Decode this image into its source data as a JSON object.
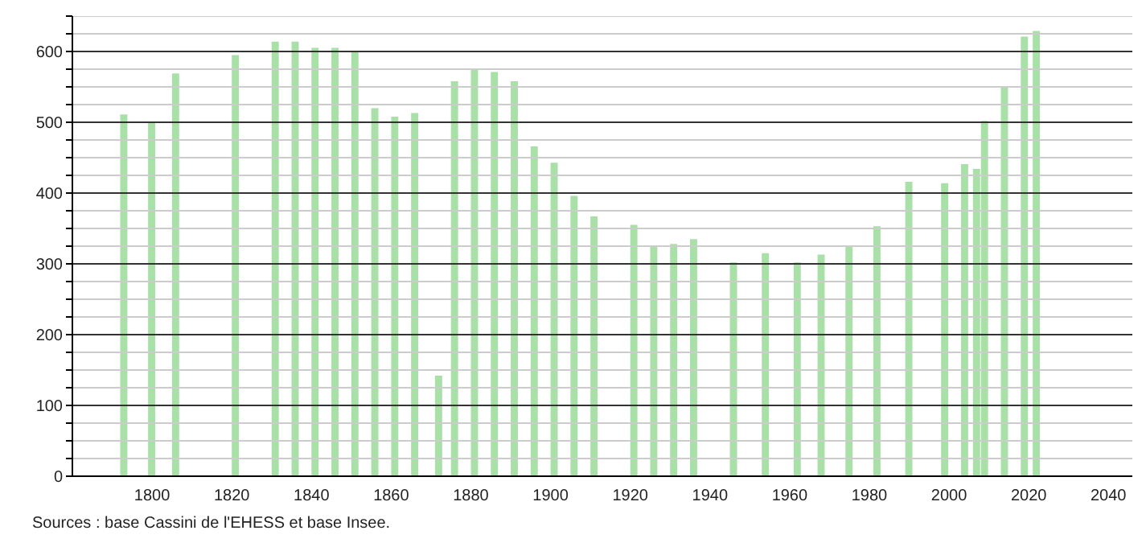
{
  "chart_data": {
    "type": "bar",
    "x": [
      1793,
      1800,
      1806,
      1821,
      1831,
      1836,
      1841,
      1846,
      1851,
      1856,
      1861,
      1866,
      1872,
      1876,
      1881,
      1886,
      1891,
      1896,
      1901,
      1906,
      1911,
      1921,
      1926,
      1931,
      1936,
      1946,
      1954,
      1962,
      1968,
      1975,
      1982,
      1990,
      1999,
      2004,
      2007,
      2009,
      2014,
      2019,
      2022
    ],
    "values": [
      511,
      500,
      569,
      595,
      614,
      614,
      605,
      605,
      601,
      520,
      508,
      513,
      142,
      558,
      576,
      571,
      558,
      466,
      443,
      396,
      367,
      355,
      325,
      328,
      335,
      302,
      315,
      302,
      313,
      326,
      353,
      416,
      414,
      441,
      434,
      502,
      550,
      621,
      629
    ],
    "color": "#a8e0a8",
    "xlim": [
      1780,
      2046
    ],
    "xticks": [
      1800,
      1820,
      1840,
      1860,
      1880,
      1900,
      1920,
      1940,
      1960,
      1980,
      2000,
      2020,
      2040
    ],
    "ylim": [
      0,
      650
    ],
    "yticks": [
      0,
      {
        "value": 25,
        "label": null
      },
      {
        "value": 50,
        "label": null
      },
      {
        "value": 75,
        "label": null
      },
      100,
      {
        "value": 125,
        "label": null
      },
      {
        "value": 150,
        "label": null
      },
      {
        "value": 175,
        "label": null
      },
      200,
      {
        "value": 225,
        "label": null
      },
      {
        "value": 250,
        "label": null
      },
      {
        "value": 275,
        "label": null
      },
      300,
      {
        "value": 325,
        "label": null
      },
      {
        "value": 350,
        "label": null
      },
      {
        "value": 375,
        "label": null
      },
      400,
      {
        "value": 425,
        "label": null
      },
      {
        "value": 450,
        "label": null
      },
      {
        "value": 475,
        "label": null
      },
      500,
      {
        "value": 525,
        "label": null
      },
      {
        "value": 550,
        "label": null
      },
      {
        "value": 575,
        "label": null
      },
      600,
      {
        "value": 625,
        "label": null
      },
      {
        "value": 650,
        "label": null
      }
    ],
    "grid": "y",
    "annotations": [
      "Sources : base Cassini de l'EHESS et base Insee."
    ]
  }
}
